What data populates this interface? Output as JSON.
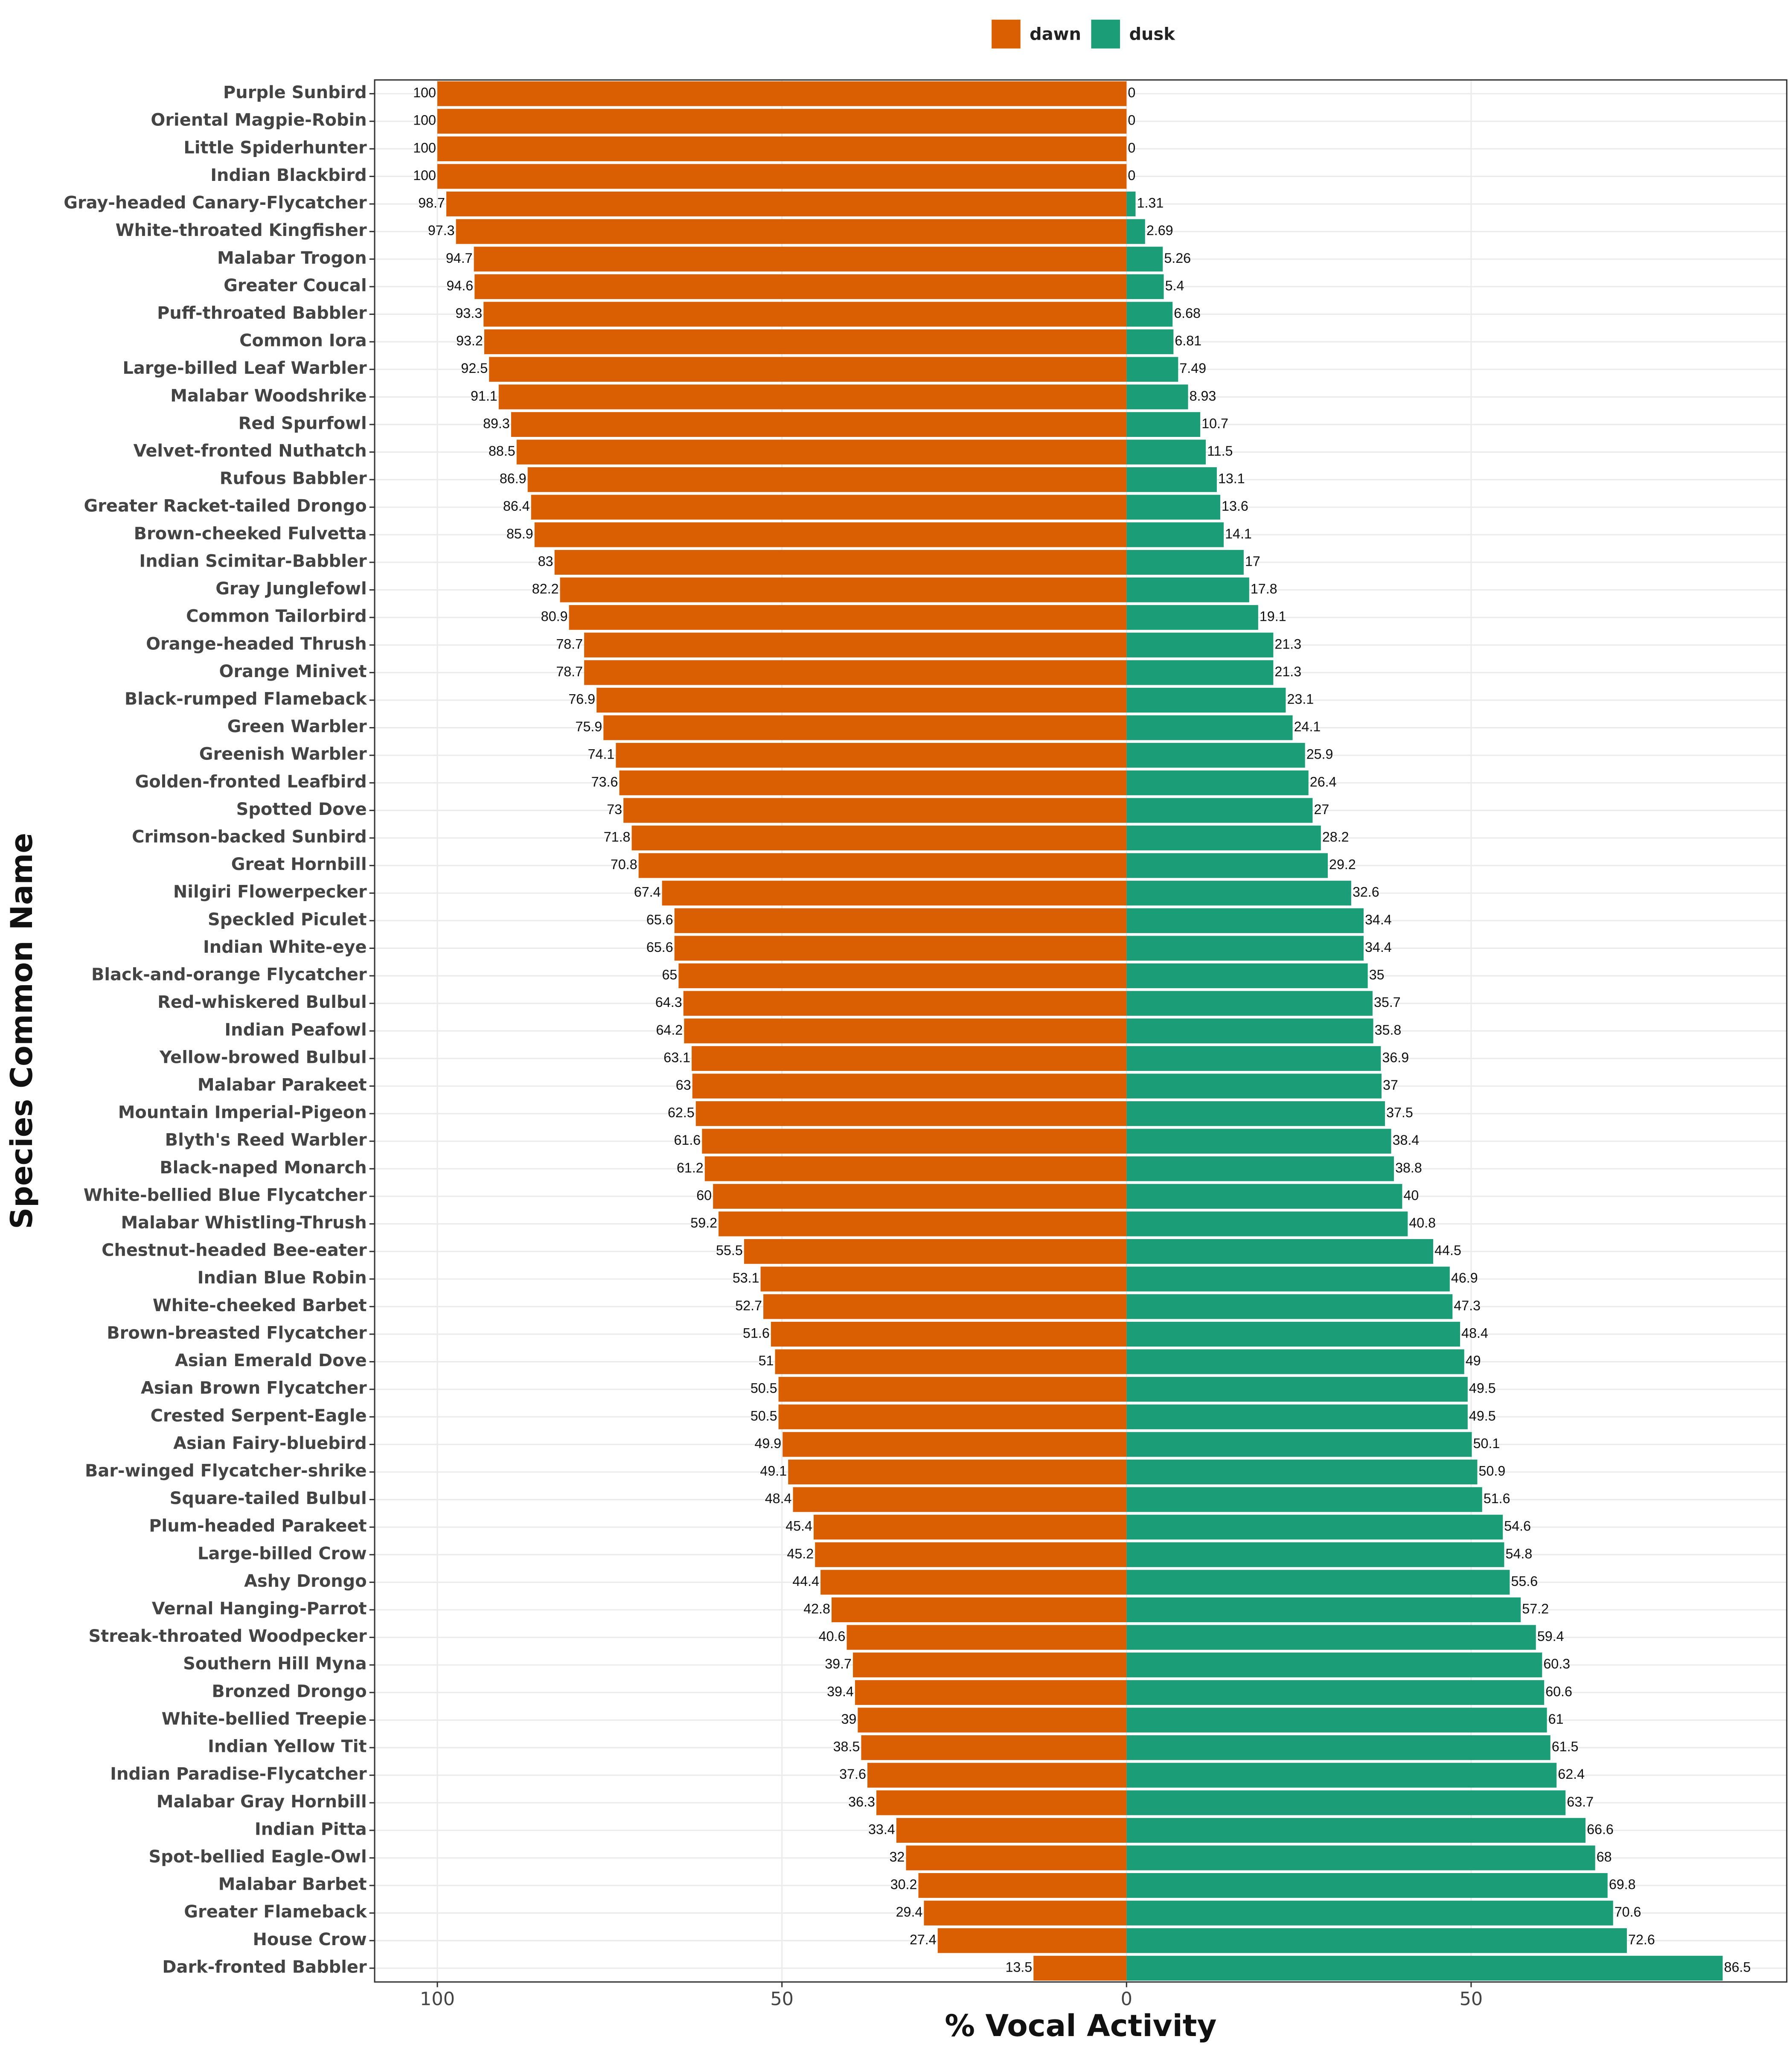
{
  "chart_data": {
    "type": "diverging-bar",
    "xlabel": "% Vocal Activity",
    "ylabel": "Species Common Name",
    "categories": [
      "Purple Sunbird",
      "Oriental Magpie-Robin",
      "Little Spiderhunter",
      "Indian Blackbird",
      "Gray-headed Canary-Flycatcher",
      "White-throated Kingfisher",
      "Malabar Trogon",
      "Greater Coucal",
      "Puff-throated Babbler",
      "Common Iora",
      "Large-billed Leaf Warbler",
      "Malabar Woodshrike",
      "Red Spurfowl",
      "Velvet-fronted Nuthatch",
      "Rufous Babbler",
      "Greater Racket-tailed Drongo",
      "Brown-cheeked Fulvetta",
      "Indian Scimitar-Babbler",
      "Gray Junglefowl",
      "Common Tailorbird",
      "Orange-headed Thrush",
      "Orange Minivet",
      "Black-rumped Flameback",
      "Green Warbler",
      "Greenish Warbler",
      "Golden-fronted Leafbird",
      "Spotted Dove",
      "Crimson-backed Sunbird",
      "Great Hornbill",
      "Nilgiri Flowerpecker",
      "Speckled Piculet",
      "Indian White-eye",
      "Black-and-orange Flycatcher",
      "Red-whiskered Bulbul",
      "Indian Peafowl",
      "Yellow-browed Bulbul",
      "Malabar Parakeet",
      "Mountain Imperial-Pigeon",
      "Blyth's Reed Warbler",
      "Black-naped Monarch",
      "White-bellied Blue Flycatcher",
      "Malabar Whistling-Thrush",
      "Chestnut-headed Bee-eater",
      "Indian Blue Robin",
      "White-cheeked Barbet",
      "Brown-breasted Flycatcher",
      "Asian Emerald Dove",
      "Asian Brown Flycatcher",
      "Crested Serpent-Eagle",
      "Asian Fairy-bluebird",
      "Bar-winged Flycatcher-shrike",
      "Square-tailed Bulbul",
      "Plum-headed Parakeet",
      "Large-billed Crow",
      "Ashy Drongo",
      "Vernal Hanging-Parrot",
      "Streak-throated Woodpecker",
      "Southern Hill Myna",
      "Bronzed Drongo",
      "White-bellied Treepie",
      "Indian Yellow Tit",
      "Indian Paradise-Flycatcher",
      "Malabar Gray Hornbill",
      "Indian Pitta",
      "Spot-bellied Eagle-Owl",
      "Malabar Barbet",
      "Greater Flameback",
      "House Crow",
      "Dark-fronted Babbler"
    ],
    "series": [
      {
        "name": "dawn",
        "color": "#d95f02",
        "values": [
          -100,
          -100,
          -100,
          -100,
          -98.7,
          -97.3,
          -94.7,
          -94.6,
          -93.3,
          -93.2,
          -92.5,
          -91.1,
          -89.3,
          -88.5,
          -86.9,
          -86.4,
          -85.9,
          -83,
          -82.2,
          -80.9,
          -78.7,
          -78.7,
          -76.9,
          -75.9,
          -74.1,
          -73.6,
          -73,
          -71.8,
          -70.8,
          -67.4,
          -65.6,
          -65.6,
          -65,
          -64.3,
          -64.2,
          -63.1,
          -63,
          -62.5,
          -61.6,
          -61.2,
          -60,
          -59.2,
          -55.5,
          -53.1,
          -52.7,
          -51.6,
          -51,
          -50.5,
          -50.5,
          -49.9,
          -49.1,
          -48.4,
          -45.4,
          -45.2,
          -44.4,
          -42.8,
          -40.6,
          -39.7,
          -39.4,
          -39,
          -38.5,
          -37.6,
          -36.3,
          -33.4,
          -32,
          -30.2,
          -29.4,
          -27.4,
          -13.5
        ],
        "value_labels": [
          "100",
          "100",
          "100",
          "100",
          "98.7",
          "97.3",
          "94.7",
          "94.6",
          "93.3",
          "93.2",
          "92.5",
          "91.1",
          "89.3",
          "88.5",
          "86.9",
          "86.4",
          "85.9",
          "83",
          "82.2",
          "80.9",
          "78.7",
          "78.7",
          "76.9",
          "75.9",
          "74.1",
          "73.6",
          "73",
          "71.8",
          "70.8",
          "67.4",
          "65.6",
          "65.6",
          "65",
          "64.3",
          "64.2",
          "63.1",
          "63",
          "62.5",
          "61.6",
          "61.2",
          "60",
          "59.2",
          "55.5",
          "53.1",
          "52.7",
          "51.6",
          "51",
          "50.5",
          "50.5",
          "49.9",
          "49.1",
          "48.4",
          "45.4",
          "45.2",
          "44.4",
          "42.8",
          "40.6",
          "39.7",
          "39.4",
          "39",
          "38.5",
          "37.6",
          "36.3",
          "33.4",
          "32",
          "30.2",
          "29.4",
          "27.4",
          "13.5"
        ]
      },
      {
        "name": "dusk",
        "color": "#1b9e77",
        "values": [
          0,
          0,
          0,
          0,
          1.31,
          2.69,
          5.26,
          5.4,
          6.68,
          6.81,
          7.49,
          8.93,
          10.7,
          11.5,
          13.1,
          13.6,
          14.1,
          17,
          17.8,
          19.1,
          21.3,
          21.3,
          23.1,
          24.1,
          25.9,
          26.4,
          27,
          28.2,
          29.2,
          32.6,
          34.4,
          34.4,
          35,
          35.7,
          35.8,
          36.9,
          37,
          37.5,
          38.4,
          38.8,
          40,
          40.8,
          44.5,
          46.9,
          47.3,
          48.4,
          49,
          49.5,
          49.5,
          50.1,
          50.9,
          51.6,
          54.6,
          54.8,
          55.6,
          57.2,
          59.4,
          60.3,
          60.6,
          61,
          61.5,
          62.4,
          63.7,
          66.6,
          68,
          69.8,
          70.6,
          72.6,
          86.5
        ]
      }
    ],
    "xlim": [
      -109.1,
      95.8
    ],
    "xticks": [
      {
        "value": -100,
        "label": "100"
      },
      {
        "value": -50,
        "label": "50"
      },
      0,
      50
    ],
    "grid": true,
    "legend": "top"
  }
}
